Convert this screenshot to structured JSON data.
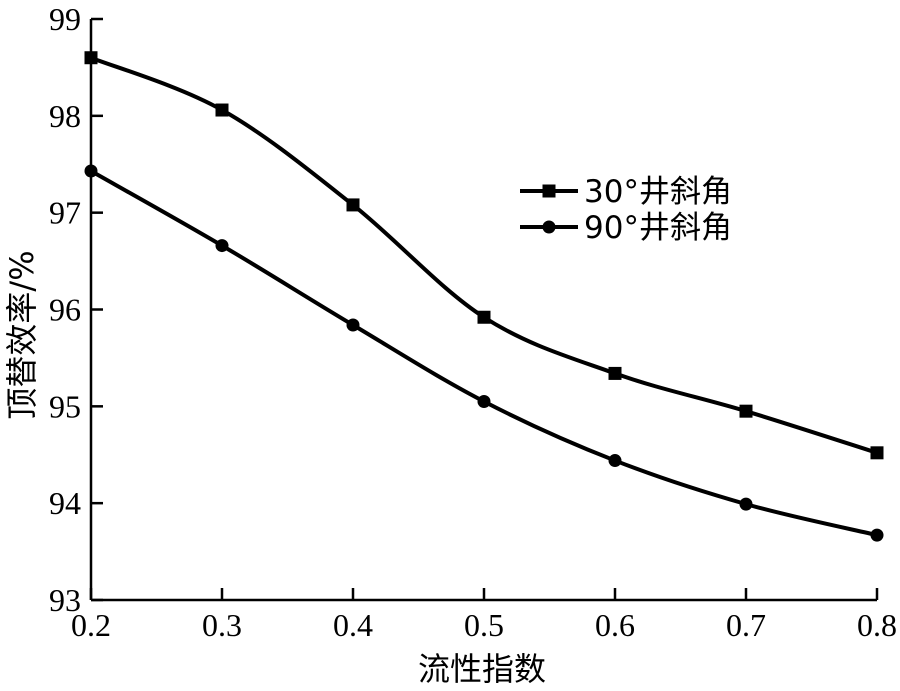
{
  "chart_data": {
    "type": "line",
    "title": "",
    "xlabel": "流性指数",
    "ylabel": "顶替效率/%",
    "x": [
      0.2,
      0.3,
      0.4,
      0.5,
      0.6,
      0.7,
      0.8
    ],
    "xticks": [
      "0.2",
      "0.3",
      "0.4",
      "0.5",
      "0.6",
      "0.7",
      "0.8"
    ],
    "yticks": [
      "93",
      "94",
      "95",
      "96",
      "97",
      "98",
      "99"
    ],
    "xlim": [
      0.2,
      0.8
    ],
    "ylim": [
      93,
      99
    ],
    "grid": false,
    "legend_position": "upper-right",
    "series": [
      {
        "name": "30°井斜角",
        "marker": "square",
        "color": "#000000",
        "values": [
          98.6,
          98.06,
          97.08,
          95.92,
          95.34,
          94.95,
          94.52
        ]
      },
      {
        "name": "90°井斜角",
        "marker": "circle",
        "color": "#000000",
        "values": [
          97.43,
          96.66,
          95.84,
          95.05,
          94.44,
          93.99,
          93.67
        ]
      }
    ]
  }
}
